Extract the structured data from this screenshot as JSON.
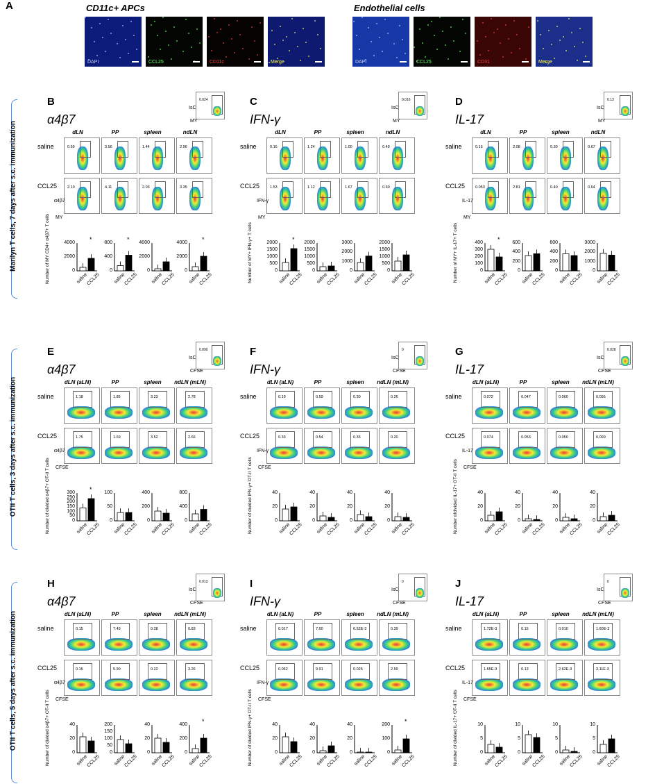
{
  "panel_a": {
    "label": "A",
    "groups": [
      {
        "title": "CD11c+ APCs",
        "images": [
          {
            "tag": "DAPI",
            "tag_color": "#c8d0ff",
            "bg": "#0d1c7a"
          },
          {
            "tag": "CCL25",
            "tag_color": "#66ff66",
            "bg": "#030603"
          },
          {
            "tag": "CD11c",
            "tag_color": "#ff4444",
            "bg": "#050202"
          },
          {
            "tag": "Merge",
            "tag_color": "#ffff66",
            "bg": "#0d1a70"
          }
        ]
      },
      {
        "title": "Endothelial cells",
        "images": [
          {
            "tag": "DAPI",
            "tag_color": "#c8d0ff",
            "bg": "#1739a8"
          },
          {
            "tag": "CCL25",
            "tag_color": "#66ff66",
            "bg": "#030603"
          },
          {
            "tag": "CD31",
            "tag_color": "#ff4444",
            "bg": "#3a0505"
          },
          {
            "tag": "Merge",
            "tag_color": "#ffff66",
            "bg": "#1a2e8a"
          }
        ]
      }
    ]
  },
  "group_labels": [
    "Marilyn T cells, 7 days after s.c. immunization",
    "OTII T cells, 3 days after s.c. immunization",
    "OTII T cells, 5 days after s.c. immunization"
  ],
  "panels": [
    {
      "label": "B",
      "title": "α4β7",
      "marker": "α4β7",
      "ylab_flow": "α4β7",
      "xlab_flow": "MY",
      "inset_pct": "0.024",
      "inset_x": "MY",
      "cols": [
        "dLN",
        "PP",
        "spleen",
        "ndLN"
      ],
      "saline": [
        "0.59",
        "3.56",
        "1.44",
        "2.96"
      ],
      "ccl25": [
        "2.10",
        "4.11",
        "2.03",
        "3.35"
      ],
      "bar_ylabel": "Number of MY CD4+ α4β7+ T cells",
      "bars": [
        {
          "ymax": 4000,
          "ticks": [
            "4000",
            "2000",
            "0"
          ],
          "saline": 500,
          "ccl25": 1800,
          "star": true
        },
        {
          "ymax": 800,
          "ticks": [
            "800",
            "400",
            "0"
          ],
          "saline": 150,
          "ccl25": 450,
          "star": true
        },
        {
          "ymax": 4000,
          "ticks": [
            "4000",
            "2000",
            "0"
          ],
          "saline": 300,
          "ccl25": 1300,
          "star": false
        },
        {
          "ymax": 4000,
          "ticks": [
            "4000",
            "2000",
            "0"
          ],
          "saline": 600,
          "ccl25": 2100,
          "star": true
        }
      ]
    },
    {
      "label": "C",
      "title": "IFN-γ",
      "ylab_flow": "IFN-γ",
      "xlab_flow": "MY",
      "inset_pct": "0.016",
      "inset_x": "MY",
      "cols": [
        "dLN",
        "PP",
        "spleen",
        "ndLN"
      ],
      "saline": [
        "0.16",
        "1.24",
        "1.00",
        "0.49"
      ],
      "ccl25": [
        "1.53",
        "1.12",
        "1.67",
        "0.60"
      ],
      "bar_ylabel": "Number of MY+ IFN-γ+ T cells",
      "bars": [
        {
          "ymax": 2000,
          "ticks": [
            "2000",
            "1500",
            "1000",
            "500",
            "0"
          ],
          "saline": 600,
          "ccl25": 1600,
          "star": true
        },
        {
          "ymax": 2000,
          "ticks": [
            "2000",
            "1500",
            "1000",
            "500",
            "0"
          ],
          "saline": 300,
          "ccl25": 350,
          "star": false
        },
        {
          "ymax": 3000,
          "ticks": [
            "3000",
            "2000",
            "1000",
            "0"
          ],
          "saline": 900,
          "ccl25": 1600,
          "star": false
        },
        {
          "ymax": 2000,
          "ticks": [
            "2000",
            "1500",
            "1000",
            "500",
            "0"
          ],
          "saline": 700,
          "ccl25": 1150,
          "star": false
        }
      ]
    },
    {
      "label": "D",
      "title": "IL-17",
      "ylab_flow": "IL-17",
      "xlab_flow": "MY",
      "inset_pct": "0.13",
      "inset_x": "MY",
      "cols": [
        "dLN",
        "PP",
        "spleen",
        "ndLN"
      ],
      "saline": [
        "0.15",
        "2.08",
        "0.30",
        "0.67"
      ],
      "ccl25": [
        "0.053",
        "2.81",
        "0.40",
        "0.64"
      ],
      "bar_ylabel": "Number of MY+ IL-17+ T cells",
      "bars": [
        {
          "ymax": 400,
          "ticks": [
            "400",
            "300",
            "200",
            "100",
            "0"
          ],
          "saline": 310,
          "ccl25": 200,
          "star": true
        },
        {
          "ymax": 600,
          "ticks": [
            "600",
            "400",
            "200",
            "0"
          ],
          "saline": 330,
          "ccl25": 370,
          "star": false
        },
        {
          "ymax": 600,
          "ticks": [
            "600",
            "400",
            "200",
            "0"
          ],
          "saline": 370,
          "ccl25": 330,
          "star": false
        },
        {
          "ymax": 3000,
          "ticks": [
            "3000",
            "2000",
            "1000",
            "0"
          ],
          "saline": 1900,
          "ccl25": 1700,
          "star": false
        }
      ]
    },
    {
      "label": "E",
      "title": "α4β7",
      "ylab_flow": "α4β7",
      "xlab_flow": "CFSE",
      "inset_pct": "0.090",
      "inset_x": "CFSE",
      "cols": [
        "dLN (aLN)",
        "PP",
        "spleen",
        "ndLN (mLN)"
      ],
      "saline": [
        "1.18",
        "1.85",
        "3.23",
        "2.78"
      ],
      "ccl25": [
        "1.75",
        "1.69",
        "3.52",
        "2.66"
      ],
      "bar_ylabel": "Number of divided α4β7+ OT-II T cells",
      "bars": [
        {
          "ymax": 300,
          "ticks": [
            "300",
            "250",
            "200",
            "150",
            "100",
            "50",
            "0"
          ],
          "saline": 140,
          "ccl25": 240,
          "star": true
        },
        {
          "ymax": 100,
          "ticks": [
            "100",
            "50",
            "0"
          ],
          "saline": 30,
          "ccl25": 30,
          "star": false
        },
        {
          "ymax": 400,
          "ticks": [
            "400",
            "200",
            "0"
          ],
          "saline": 140,
          "ccl25": 110,
          "star": false
        },
        {
          "ymax": 800,
          "ticks": [
            "800",
            "400",
            "0"
          ],
          "saline": 200,
          "ccl25": 330,
          "star": false
        }
      ]
    },
    {
      "label": "F",
      "title": "IFN-γ",
      "ylab_flow": "IFN-γ",
      "xlab_flow": "CFSE",
      "inset_pct": "0",
      "inset_x": "CFSE",
      "cols": [
        "dLN (aLN)",
        "PP",
        "spleen",
        "ndLN (mLN)"
      ],
      "saline": [
        "0.19",
        "0.59",
        "0.30",
        "0.26"
      ],
      "ccl25": [
        "0.33",
        "0.54",
        "0.33",
        "0.20"
      ],
      "bar_ylabel": "Number of divided IFN-γ+ OT-II T cells",
      "bars": [
        {
          "ymax": 40,
          "ticks": [
            "40",
            "20",
            "0"
          ],
          "saline": 17,
          "ccl25": 20,
          "star": false
        },
        {
          "ymax": 40,
          "ticks": [
            "40",
            "20",
            "0"
          ],
          "saline": 7,
          "ccl25": 5,
          "star": false
        },
        {
          "ymax": 40,
          "ticks": [
            "40",
            "20",
            "0"
          ],
          "saline": 9,
          "ccl25": 6,
          "star": false
        },
        {
          "ymax": 40,
          "ticks": [
            "40",
            "20",
            "0"
          ],
          "saline": 6,
          "ccl25": 5,
          "star": false
        }
      ]
    },
    {
      "label": "G",
      "title": "IL-17",
      "ylab_flow": "IL-17",
      "xlab_flow": "CFSE",
      "inset_pct": "0.028",
      "inset_x": "CFSE",
      "cols": [
        "dLN (aLN)",
        "PP",
        "spleen",
        "ndLN (mLN)"
      ],
      "saline": [
        "0.072",
        "0.047",
        "0.060",
        "0.095"
      ],
      "ccl25": [
        "0.074",
        "0.053",
        "0.050",
        "0.099"
      ],
      "bar_ylabel": "Number ofdivided IL-17+ OT-II T cells",
      "bars": [
        {
          "ymax": 40,
          "ticks": [
            "40",
            "20",
            "0"
          ],
          "saline": 8,
          "ccl25": 13,
          "star": false
        },
        {
          "ymax": 40,
          "ticks": [
            "40",
            "20",
            "0"
          ],
          "saline": 3,
          "ccl25": 2,
          "star": false
        },
        {
          "ymax": 40,
          "ticks": [
            "40",
            "20",
            "0"
          ],
          "saline": 5,
          "ccl25": 3,
          "star": false
        },
        {
          "ymax": 40,
          "ticks": [
            "40",
            "20",
            "0"
          ],
          "saline": 6,
          "ccl25": 8,
          "star": false
        }
      ]
    },
    {
      "label": "H",
      "title": "α4β7",
      "ylab_flow": "α4β7",
      "xlab_flow": "CFSE",
      "inset_pct": "0.013",
      "inset_x": "CFSE",
      "cols": [
        "dLN (aLN)",
        "PP",
        "spleen",
        "ndLN (mLN)"
      ],
      "saline": [
        "0.15",
        "7.43",
        "0.28",
        "0.83"
      ],
      "ccl25": [
        "0.15",
        "5.90",
        "0.22",
        "3.26"
      ],
      "bar_ylabel": "Number of divided α4β7+ OT-II T cells",
      "bars": [
        {
          "ymax": 40,
          "ticks": [
            "40",
            "20",
            "0"
          ],
          "saline": 23,
          "ccl25": 17,
          "star": false
        },
        {
          "ymax": 200,
          "ticks": [
            "200",
            "150",
            "100",
            "50",
            "0"
          ],
          "saline": 95,
          "ccl25": 65,
          "star": false
        },
        {
          "ymax": 40,
          "ticks": [
            "40",
            "20",
            "0"
          ],
          "saline": 21,
          "ccl25": 15,
          "star": false
        },
        {
          "ymax": 400,
          "ticks": [
            "400",
            "200",
            "0"
          ],
          "saline": 60,
          "ccl25": 210,
          "star": true
        }
      ]
    },
    {
      "label": "I",
      "title": "IFN-γ",
      "ylab_flow": "IFN-γ",
      "xlab_flow": "CFSE",
      "inset_pct": "0",
      "inset_x": "CFSE",
      "cols": [
        "dLN (aLN)",
        "PP",
        "spleen",
        "ndLN (mLN)"
      ],
      "saline": [
        "0.017",
        "7.00",
        "6.52E-3",
        "0.39"
      ],
      "ccl25": [
        "0.062",
        "9.91",
        "0.025",
        "2.59"
      ],
      "bar_ylabel": "Number of divided IFN-γ+ OT-II T cells",
      "bars": [
        {
          "ymax": 40,
          "ticks": [
            "40",
            "20",
            "0"
          ],
          "saline": 23,
          "ccl25": 16,
          "star": false
        },
        {
          "ymax": 40,
          "ticks": [
            "40",
            "20",
            "0"
          ],
          "saline": 3,
          "ccl25": 10,
          "star": false
        },
        {
          "ymax": 40,
          "ticks": [
            "40",
            "20",
            "0"
          ],
          "saline": 1,
          "ccl25": 1,
          "star": false
        },
        {
          "ymax": 200,
          "ticks": [
            "200",
            "100",
            "0"
          ],
          "saline": 20,
          "ccl25": 100,
          "star": true
        }
      ]
    },
    {
      "label": "J",
      "title": "IL-17",
      "ylab_flow": "IL-17",
      "xlab_flow": "CFSE",
      "inset_pct": "0",
      "inset_x": "CFSE",
      "cols": [
        "dLN (aLN)",
        "PP",
        "spleen",
        "ndLN (mLN)"
      ],
      "saline": [
        "1.72E-3",
        "0.15",
        "0.010",
        "1.60E-3"
      ],
      "ccl25": [
        "1.55E-3",
        "0.13",
        "2.62E-3",
        "3.11E-3"
      ],
      "bar_ylabel": "Number of divided IL-17+ OT-II T cells",
      "bars": [
        {
          "ymax": 10,
          "ticks": [
            "10",
            "5",
            "0"
          ],
          "saline": 3,
          "ccl25": 2,
          "star": false
        },
        {
          "ymax": 10,
          "ticks": [
            "10",
            "5",
            "0"
          ],
          "saline": 6.5,
          "ccl25": 5.5,
          "star": false
        },
        {
          "ymax": 10,
          "ticks": [
            "10",
            "5",
            "0"
          ],
          "saline": 1,
          "ccl25": 0.5,
          "star": false
        },
        {
          "ymax": 10,
          "ticks": [
            "10",
            "5",
            "0"
          ],
          "saline": 3,
          "ccl25": 5,
          "star": false
        }
      ]
    }
  ],
  "row_labels": {
    "saline": "saline",
    "ccl25": "CCL25"
  },
  "bar_categories": [
    "saline",
    "CCL25"
  ],
  "star_symbol": "*",
  "colors": {
    "saline_fill": "#ffffff",
    "ccl25_fill": "#000000",
    "brace": "#5b8fd6"
  }
}
